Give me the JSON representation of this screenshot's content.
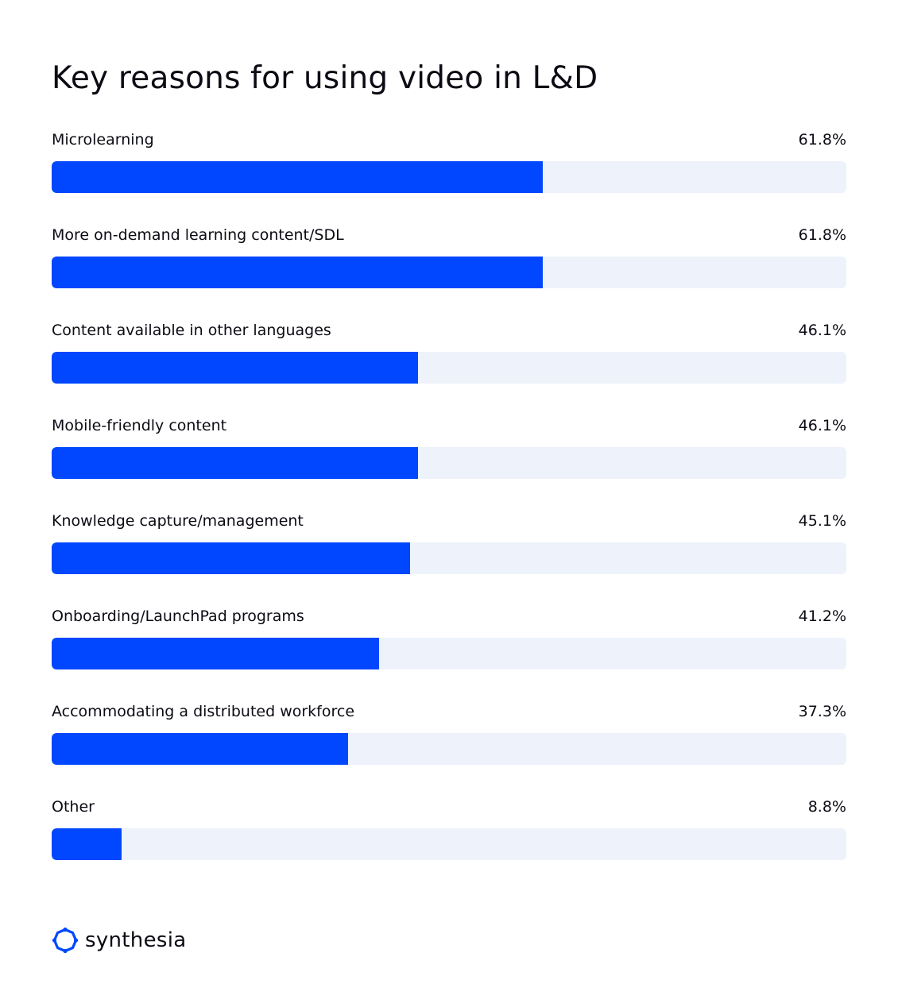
{
  "chart_data": {
    "type": "bar",
    "orientation": "horizontal",
    "title": "Key reasons for using video in L&D",
    "xlim": [
      0,
      100
    ],
    "value_unit": "%",
    "grid": false,
    "colors": {
      "fill": "#0047ff",
      "track": "#eef2fb"
    },
    "categories": [
      "Microlearning",
      "More on-demand learning content/SDL",
      "Content available in other languages",
      "Mobile-friendly content",
      "Knowledge capture/management",
      "Onboarding/LaunchPad programs",
      "Accommodating a distributed workforce",
      "Other"
    ],
    "values": [
      61.8,
      61.8,
      46.1,
      46.1,
      45.1,
      41.2,
      37.3,
      8.8
    ],
    "value_labels": [
      "61.8%",
      "61.8%",
      "46.1%",
      "46.1%",
      "45.1%",
      "41.2%",
      "37.3%",
      "8.8%"
    ]
  },
  "brand": {
    "name": "synthesia",
    "icon": "synthesia-logo-icon",
    "color": "#0047ff"
  }
}
